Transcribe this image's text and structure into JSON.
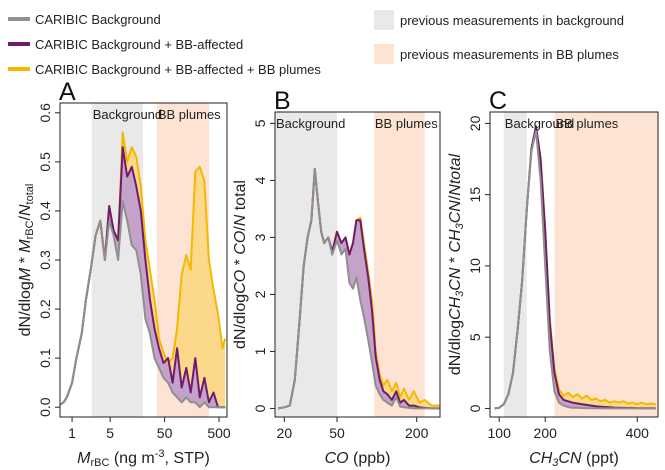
{
  "legend": {
    "background_label": "CARIBIC Background",
    "bb_affected_label": "CARIBIC Background + BB-affected",
    "bb_plumes_label": "CARIBIC Background + BB-affected + BB plumes",
    "prev_background_label": "previous measurements in background",
    "prev_plumes_label": "previous measurements in BB plumes"
  },
  "colors": {
    "background_line": "#8f8f8f",
    "bb_affected_line": "#6e1a6e",
    "bb_affected_fill": "#c4a2c9",
    "bb_plumes_line": "#f5b800",
    "bb_plumes_fill": "#fcd98a",
    "prev_background_band": "#e9e9e9",
    "prev_plumes_band": "#fce3d3"
  },
  "chart_data": [
    {
      "type": "line",
      "panel_label": "A",
      "xlabel": "M_rBC (ng m^-3, STP)",
      "ylabel": "dN/dlogM * M_rBC/N_total",
      "x_scale": "log",
      "xlim": [
        0.6,
        700
      ],
      "ylim": [
        -0.02,
        0.62
      ],
      "x_ticks": [
        {
          "value": 1,
          "label": "1"
        },
        {
          "value": 5,
          "label": "5"
        },
        {
          "value": 50,
          "label": "50"
        },
        {
          "value": 500,
          "label": "500"
        }
      ],
      "y_ticks": [
        {
          "value": 0.0,
          "label": "0.0"
        },
        {
          "value": 0.1,
          "label": "0.1"
        },
        {
          "value": 0.2,
          "label": "0.2"
        },
        {
          "value": 0.3,
          "label": "0.3"
        },
        {
          "value": 0.4,
          "label": "0.4"
        },
        {
          "value": 0.5,
          "label": "0.5"
        },
        {
          "value": 0.6,
          "label": "0.6"
        }
      ],
      "regions": [
        {
          "label": "Background",
          "x_range": [
            2.3,
            20
          ],
          "band": "background"
        },
        {
          "label": "BB plumes",
          "x_range": [
            36,
            330
          ],
          "band": "plumes"
        }
      ],
      "x": [
        0.6,
        0.7,
        0.8,
        1.0,
        1.2,
        1.5,
        1.8,
        2.2,
        2.7,
        3.3,
        4.0,
        4.8,
        5.8,
        7.0,
        8.5,
        10.3,
        12.5,
        15.1,
        18.3,
        22.2,
        26.9,
        32.6,
        39.5,
        47.8,
        57.9,
        70.2,
        85.0,
        103,
        125,
        151,
        183,
        222,
        269,
        326,
        395,
        479,
        580,
        650
      ],
      "series": [
        {
          "name": "CARIBIC Background",
          "values": [
            0.005,
            0.01,
            0.02,
            0.05,
            0.1,
            0.15,
            0.22,
            0.28,
            0.35,
            0.38,
            0.3,
            0.38,
            0.35,
            0.3,
            0.42,
            0.38,
            0.33,
            0.32,
            0.27,
            0.18,
            0.15,
            0.1,
            0.08,
            0.06,
            0.05,
            0.03,
            0.02,
            0.01,
            0.02,
            0.01,
            0.01,
            0.0,
            0.01,
            0.0,
            0.0,
            0.0,
            0.0,
            0.0
          ]
        },
        {
          "name": "CARIBIC Background + BB-affected",
          "values": [
            0.005,
            0.01,
            0.02,
            0.05,
            0.1,
            0.15,
            0.22,
            0.28,
            0.35,
            0.38,
            0.3,
            0.41,
            0.36,
            0.34,
            0.53,
            0.47,
            0.49,
            0.45,
            0.4,
            0.3,
            0.22,
            0.16,
            0.12,
            0.09,
            0.1,
            0.05,
            0.12,
            0.04,
            0.08,
            0.03,
            0.1,
            0.02,
            0.06,
            0.01,
            0.03,
            0.0,
            0.0,
            0.0
          ]
        },
        {
          "name": "CARIBIC Background + BB-affected + BB plumes",
          "values": [
            0.005,
            0.01,
            0.02,
            0.05,
            0.1,
            0.15,
            0.22,
            0.28,
            0.35,
            0.38,
            0.3,
            0.41,
            0.36,
            0.34,
            0.56,
            0.5,
            0.53,
            0.51,
            0.45,
            0.34,
            0.28,
            0.22,
            0.14,
            0.11,
            0.09,
            0.1,
            0.16,
            0.27,
            0.31,
            0.28,
            0.48,
            0.49,
            0.46,
            0.3,
            0.24,
            0.19,
            0.12,
            0.14
          ]
        }
      ]
    },
    {
      "type": "line",
      "panel_label": "B",
      "xlabel": "CO (ppb)",
      "ylabel": "dN/dlogCO * CO/N total",
      "x_scale": "log",
      "xlim": [
        17,
        300
      ],
      "ylim": [
        -0.15,
        5.2
      ],
      "x_ticks": [
        {
          "value": 20,
          "label": "20"
        },
        {
          "value": 50,
          "label": "50"
        },
        {
          "value": 200,
          "label": "200"
        }
      ],
      "y_ticks": [
        {
          "value": 0,
          "label": "0"
        },
        {
          "value": 1,
          "label": "1"
        },
        {
          "value": 2,
          "label": "2"
        },
        {
          "value": 3,
          "label": "3"
        },
        {
          "value": 4,
          "label": "4"
        },
        {
          "value": 5,
          "label": "5"
        }
      ],
      "regions": [
        {
          "label": "Background",
          "x_range": [
            17,
            50
          ],
          "band": "background"
        },
        {
          "label": "BB plumes",
          "x_range": [
            95,
            230
          ],
          "band": "plumes"
        }
      ],
      "x": [
        18,
        20,
        22,
        24,
        26,
        28,
        30,
        32,
        34,
        36,
        38,
        40,
        43,
        46,
        50,
        54,
        58,
        62,
        66,
        70,
        75,
        80,
        86,
        92,
        98,
        105,
        112,
        120,
        130,
        140,
        150,
        160,
        175,
        190,
        210,
        230,
        260,
        300
      ],
      "series": [
        {
          "name": "CARIBIC Background",
          "values": [
            0.0,
            0.02,
            0.05,
            0.5,
            1.5,
            2.5,
            3.0,
            3.3,
            4.2,
            3.6,
            3.1,
            2.9,
            3.0,
            2.7,
            2.95,
            2.7,
            2.8,
            2.2,
            2.1,
            2.3,
            1.9,
            1.6,
            1.2,
            0.8,
            0.4,
            0.25,
            0.15,
            0.1,
            0.05,
            0.2,
            0.03,
            0.02,
            0.01,
            0.0,
            0.0,
            0.0,
            0.0,
            0.0
          ]
        },
        {
          "name": "CARIBIC Background + BB-affected",
          "values": [
            0.0,
            0.02,
            0.05,
            0.5,
            1.5,
            2.5,
            3.0,
            3.3,
            4.2,
            3.6,
            3.1,
            2.9,
            3.0,
            2.75,
            3.1,
            2.9,
            3.0,
            2.7,
            2.9,
            3.3,
            3.3,
            2.8,
            2.3,
            1.7,
            0.9,
            0.5,
            0.3,
            0.25,
            0.15,
            0.3,
            0.1,
            0.15,
            0.05,
            0.05,
            0.02,
            0.01,
            0.0,
            0.0
          ]
        },
        {
          "name": "CARIBIC Background + BB-affected + BB plumes",
          "values": [
            0.0,
            0.02,
            0.05,
            0.5,
            1.5,
            2.5,
            3.0,
            3.3,
            4.2,
            3.6,
            3.1,
            2.9,
            3.0,
            2.75,
            3.1,
            2.9,
            3.0,
            2.7,
            2.9,
            3.3,
            3.35,
            2.9,
            2.4,
            1.9,
            1.0,
            0.6,
            0.4,
            0.5,
            0.3,
            0.45,
            0.2,
            0.35,
            0.15,
            0.3,
            0.1,
            0.15,
            0.05,
            0.05
          ]
        }
      ]
    },
    {
      "type": "line",
      "panel_label": "C",
      "xlabel": "CH3CN (ppt)",
      "ylabel": "dN/dlogCH3CN * CH3CN/N total",
      "x_scale": "linear",
      "xlim": [
        80,
        445
      ],
      "ylim": [
        -0.6,
        20.8
      ],
      "x_ticks": [
        {
          "value": 100,
          "label": "100"
        },
        {
          "value": 200,
          "label": "200"
        },
        {
          "value": 400,
          "label": "400"
        }
      ],
      "y_ticks": [
        {
          "value": 0,
          "label": "0"
        },
        {
          "value": 5,
          "label": "5"
        },
        {
          "value": 10,
          "label": "10"
        },
        {
          "value": 15,
          "label": "15"
        },
        {
          "value": 20,
          "label": "20"
        }
      ],
      "regions": [
        {
          "label": "Background",
          "x_range": [
            110,
            160
          ],
          "band": "background"
        },
        {
          "label": "BB plumes",
          "x_range": [
            220,
            445
          ],
          "band": "plumes"
        }
      ],
      "x": [
        90,
        100,
        110,
        120,
        130,
        140,
        150,
        160,
        170,
        180,
        190,
        200,
        210,
        220,
        230,
        240,
        250,
        260,
        270,
        280,
        290,
        300,
        310,
        320,
        330,
        340,
        350,
        360,
        370,
        380,
        390,
        400,
        410,
        420,
        430,
        440
      ],
      "series": [
        {
          "name": "CARIBIC Background",
          "values": [
            0.0,
            0.05,
            0.3,
            1.0,
            2.5,
            5.5,
            9.0,
            14.0,
            18.0,
            19.5,
            16.0,
            10.0,
            4.0,
            1.2,
            0.4,
            0.2,
            0.1,
            0.05,
            0.05,
            0.03,
            0.02,
            0.02,
            0.01,
            0.01,
            0.0,
            0.0,
            0.0,
            0.0,
            0.0,
            0.0,
            0.0,
            0.0,
            0.0,
            0.0,
            0.0,
            0.0
          ]
        },
        {
          "name": "CARIBIC Background + BB-affected",
          "values": [
            0.0,
            0.05,
            0.3,
            1.0,
            2.5,
            5.5,
            9.0,
            14.0,
            18.2,
            19.8,
            17.5,
            12.5,
            6.0,
            2.5,
            1.0,
            0.6,
            0.5,
            0.4,
            0.35,
            0.3,
            0.25,
            0.2,
            0.15,
            0.12,
            0.1,
            0.08,
            0.06,
            0.05,
            0.04,
            0.03,
            0.03,
            0.02,
            0.02,
            0.02,
            0.01,
            0.01
          ]
        },
        {
          "name": "CARIBIC Background + BB-affected + BB plumes",
          "values": [
            0.0,
            0.05,
            0.3,
            1.0,
            2.5,
            5.5,
            9.0,
            14.0,
            18.2,
            19.8,
            17.5,
            12.6,
            6.3,
            2.8,
            1.3,
            0.9,
            1.1,
            0.8,
            1.0,
            0.7,
            0.9,
            0.6,
            0.7,
            0.5,
            0.6,
            0.4,
            0.5,
            0.4,
            0.5,
            0.35,
            0.4,
            0.3,
            0.4,
            0.3,
            0.35,
            0.3
          ]
        }
      ]
    }
  ]
}
